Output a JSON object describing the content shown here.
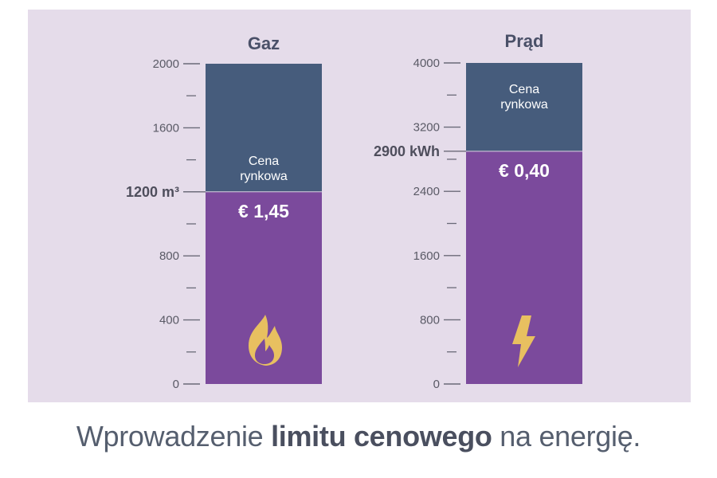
{
  "colors": {
    "panel_bg": "#e5dcea",
    "market_segment": "#465c7c",
    "capped_segment": "#7b4a9c",
    "icon": "#e8c060",
    "axis": "#6a6a78",
    "title": "#4a5068"
  },
  "chart_data": [
    {
      "type": "bar",
      "title": "Gaz",
      "ylim": [
        0,
        2000
      ],
      "major_ticks": [
        0,
        400,
        800,
        1200,
        1600,
        2000
      ],
      "tick_labels": [
        "0",
        "400",
        "800",
        "",
        "1600",
        "2000"
      ],
      "minor_ticks": [
        200,
        600,
        1000,
        1400,
        1800
      ],
      "total": 2000,
      "limit_value": 1200,
      "limit_label": "1200 m³",
      "series": [
        {
          "name": "",
          "values": [
            1200
          ],
          "label": "€ 1,45"
        },
        {
          "name": "",
          "values": [
            800
          ],
          "label": "Cena rynkowa"
        }
      ],
      "icon": "flame-icon"
    },
    {
      "type": "bar",
      "title": "Prąd",
      "ylim": [
        0,
        4000
      ],
      "major_ticks": [
        0,
        800,
        1600,
        2400,
        3200,
        4000
      ],
      "tick_labels": [
        "0",
        "800",
        "1600",
        "2400",
        "3200",
        "4000"
      ],
      "minor_ticks": [
        400,
        1200,
        2000,
        2800,
        3600
      ],
      "total": 4000,
      "limit_value": 2900,
      "limit_label": "2900 kWh",
      "series": [
        {
          "name": "",
          "values": [
            2900
          ],
          "label": "€ 0,40"
        },
        {
          "name": "",
          "values": [
            1100
          ],
          "label": "Cena rynkowa"
        }
      ],
      "icon": "lightning-icon"
    }
  ],
  "caption": {
    "part1": "Wprowadzenie ",
    "bold": "limitu cenowego",
    "part2": " na energię."
  }
}
